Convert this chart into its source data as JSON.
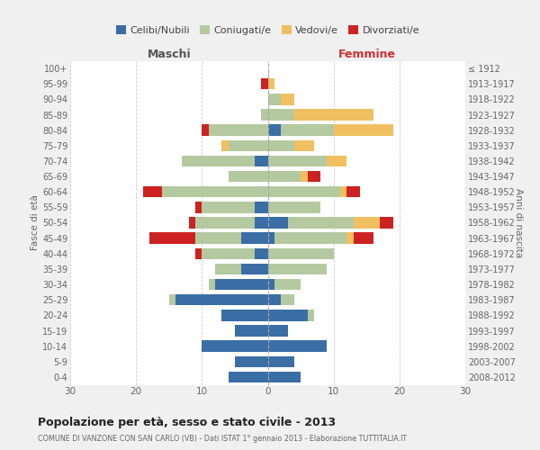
{
  "age_groups": [
    "100+",
    "95-99",
    "90-94",
    "85-89",
    "80-84",
    "75-79",
    "70-74",
    "65-69",
    "60-64",
    "55-59",
    "50-54",
    "45-49",
    "40-44",
    "35-39",
    "30-34",
    "25-29",
    "20-24",
    "15-19",
    "10-14",
    "5-9",
    "0-4"
  ],
  "birth_years": [
    "≤ 1912",
    "1913-1917",
    "1918-1922",
    "1923-1927",
    "1928-1932",
    "1933-1937",
    "1938-1942",
    "1943-1947",
    "1948-1952",
    "1953-1957",
    "1958-1962",
    "1963-1967",
    "1968-1972",
    "1973-1977",
    "1978-1982",
    "1983-1987",
    "1988-1992",
    "1993-1997",
    "1998-2002",
    "2003-2007",
    "2008-2012"
  ],
  "colors": {
    "celibi": "#3a6ea5",
    "coniugati": "#b5c9a0",
    "vedovi": "#f0c060",
    "divorziati": "#cc2222"
  },
  "legend_colors_order": [
    "Celibi/Nubili",
    "Coniugati/e",
    "Vedovi/e",
    "Divorziati/e"
  ],
  "legend_colors": {
    "Celibi/Nubili": "#3a6ea5",
    "Coniugati/e": "#b5c9a0",
    "Vedovi/e": "#f0c060",
    "Divorziati/e": "#cc2222"
  },
  "maschi": {
    "celibi": [
      0,
      0,
      0,
      0,
      0,
      0,
      2,
      0,
      0,
      2,
      2,
      4,
      2,
      4,
      8,
      14,
      7,
      5,
      10,
      5,
      6
    ],
    "coniugati": [
      0,
      0,
      0,
      1,
      9,
      6,
      11,
      6,
      16,
      8,
      9,
      7,
      8,
      4,
      1,
      1,
      0,
      0,
      0,
      0,
      0
    ],
    "vedovi": [
      0,
      0,
      0,
      0,
      0,
      1,
      0,
      0,
      0,
      0,
      0,
      0,
      0,
      0,
      0,
      0,
      0,
      0,
      0,
      0,
      0
    ],
    "divorziati": [
      0,
      1,
      0,
      0,
      1,
      0,
      0,
      0,
      3,
      1,
      1,
      7,
      1,
      0,
      0,
      0,
      0,
      0,
      0,
      0,
      0
    ]
  },
  "femmine": {
    "nubili": [
      0,
      0,
      0,
      0,
      2,
      0,
      0,
      0,
      0,
      0,
      3,
      1,
      0,
      0,
      1,
      2,
      6,
      3,
      9,
      4,
      5
    ],
    "coniugate": [
      0,
      0,
      2,
      4,
      8,
      4,
      9,
      5,
      11,
      8,
      10,
      11,
      10,
      9,
      4,
      2,
      1,
      0,
      0,
      0,
      0
    ],
    "vedove": [
      0,
      1,
      2,
      12,
      9,
      3,
      3,
      1,
      1,
      0,
      4,
      1,
      0,
      0,
      0,
      0,
      0,
      0,
      0,
      0,
      0
    ],
    "divorziate": [
      0,
      0,
      0,
      0,
      0,
      0,
      0,
      2,
      2,
      0,
      2,
      3,
      0,
      0,
      0,
      0,
      0,
      0,
      0,
      0,
      0
    ]
  },
  "xlim": 30,
  "title": "Popolazione per età, sesso e stato civile - 2013",
  "subtitle": "COMUNE DI VANZONE CON SAN CARLO (VB) - Dati ISTAT 1° gennaio 2013 - Elaborazione TUTTITALIA.IT",
  "xlabel_left": "Maschi",
  "xlabel_right": "Femmine",
  "ylabel_left": "Fasce di età",
  "ylabel_right": "Anni di nascita",
  "background_color": "#f0f0f0",
  "bar_background": "#ffffff"
}
